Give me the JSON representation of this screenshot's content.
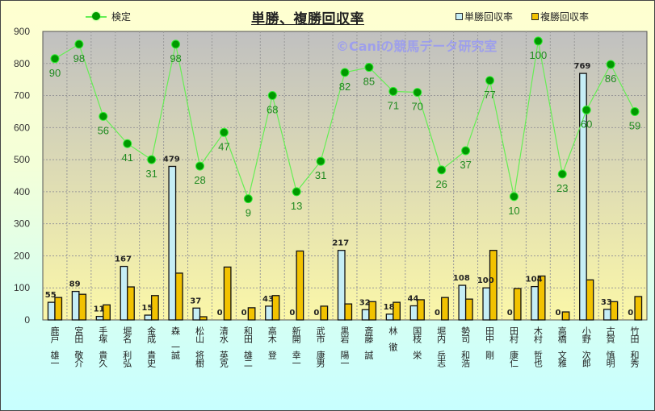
{
  "title": "単勝、複勝回収率",
  "watermark": "©Caniの競馬データ研究室",
  "legend": {
    "line": "検定",
    "bar1": "単勝回収率",
    "bar2": "複勝回収率"
  },
  "colors": {
    "tansho": "#c6eef6",
    "fukusho": "#f2c200",
    "line": "#66ee55",
    "marker": "#009900",
    "plot_top": "#c0c0c0",
    "plot_bottom": "#fbf7a8"
  },
  "chart_data": {
    "type": "bar+line",
    "title": "単勝、複勝回収率",
    "xlabel": "",
    "ylabel": "",
    "ylim": [
      0,
      900
    ],
    "yticks": [
      0,
      100,
      200,
      300,
      400,
      500,
      600,
      700,
      800,
      900
    ],
    "grid": true,
    "legend_position": "top",
    "categories": [
      "鹿戸 雄一",
      "宮田 敬介",
      "手塚 貴久",
      "堀名 利弘",
      "金成 貴史",
      "森 一誠",
      "松山 将樹",
      "清水 英克",
      "和田 雄二",
      "高木 登",
      "新開 幸一",
      "武市 康男",
      "黒岩 陽一",
      "斎藤 誠",
      "林 徹",
      "国枝 栄",
      "堀内 岳志",
      "勢司 和浩",
      "田中 剛",
      "田村 康仁",
      "木村 哲也",
      "高橋 文雅",
      "小野 次郎",
      "古賀 慎明",
      "竹田 和秀"
    ],
    "series": [
      {
        "name": "単勝回収率",
        "type": "bar",
        "values": [
          55,
          89,
          11,
          167,
          15,
          479,
          37,
          0,
          0,
          43,
          0,
          0,
          217,
          32,
          18,
          44,
          0,
          108,
          100,
          0,
          104,
          0,
          769,
          33,
          0
        ]
      },
      {
        "name": "複勝回収率",
        "type": "bar",
        "values": [
          70,
          80,
          47,
          103,
          76,
          146,
          10,
          165,
          38,
          76,
          215,
          43,
          50,
          57,
          55,
          63,
          70,
          65,
          217,
          98,
          137,
          25,
          125,
          57,
          73
        ]
      },
      {
        "name": "検定",
        "type": "line",
        "plotted_y": [
          815,
          860,
          635,
          550,
          500,
          860,
          480,
          585,
          378,
          700,
          400,
          495,
          772,
          788,
          713,
          710,
          468,
          528,
          747,
          385,
          870,
          455,
          655,
          797,
          650
        ],
        "labels": [
          90,
          98,
          56,
          41,
          31,
          98,
          28,
          47,
          9,
          68,
          13,
          31,
          82,
          85,
          71,
          70,
          26,
          37,
          77,
          10,
          100,
          23,
          60,
          86,
          59
        ]
      }
    ]
  }
}
